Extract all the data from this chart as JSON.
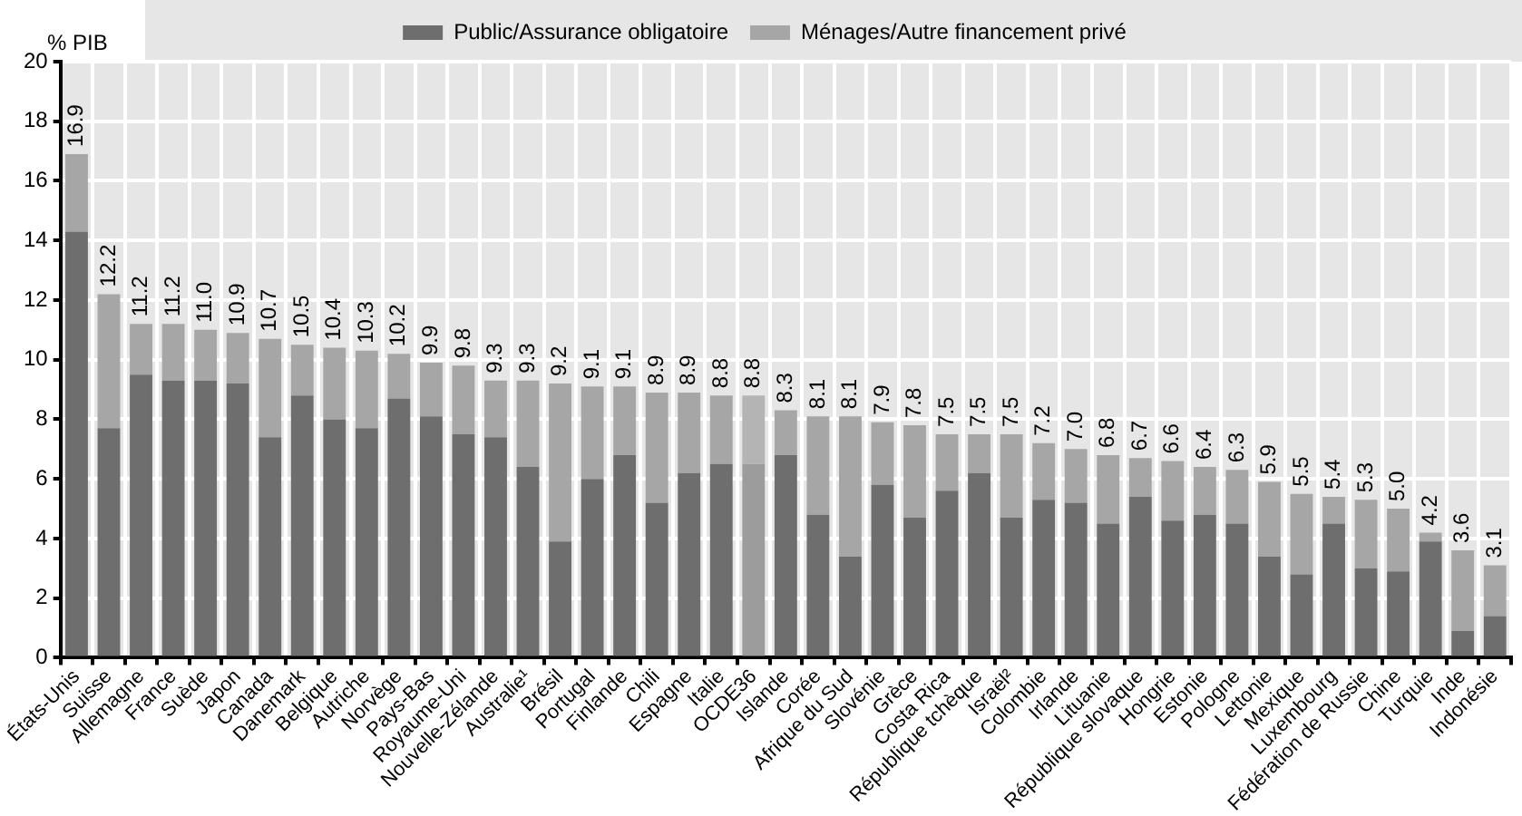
{
  "chart_data": {
    "type": "bar",
    "stacked": true,
    "ylabel": "% PIB",
    "legend": "top",
    "grid": true,
    "categories": [
      "États-Unis",
      "Suisse",
      "Allemagne",
      "France",
      "Suède",
      "Japon",
      "Canada",
      "Danemark",
      "Belgique",
      "Autriche",
      "Norvège",
      "Pays-Bas",
      "Royaume-Uni",
      "Nouvelle-Zélande",
      "Australie¹",
      "Brésil",
      "Portugal",
      "Finlande",
      "Chili",
      "Espagne",
      "Italie",
      "OCDE36",
      "Islande",
      "Corée",
      "Afrique du Sud",
      "Slovénie",
      "Grèce",
      "Costa Rica",
      "République tchèque",
      "Israël²",
      "Colombie",
      "Irlande",
      "Lituanie",
      "République slovaque",
      "Hongrie",
      "Estonie",
      "Pologne",
      "Lettonie",
      "Mexique",
      "Luxembourg",
      "Fédération de Russie",
      "Chine",
      "Turquie",
      "Inde",
      "Indonésie"
    ],
    "series": [
      {
        "name": "Public/Assurance obligatoire",
        "color": "#6e6e6e",
        "colors": [
          "#6e6e6e",
          "#6e6e6e",
          "#6e6e6e",
          "#6e6e6e",
          "#6e6e6e",
          "#6e6e6e",
          "#6e6e6e",
          "#6e6e6e",
          "#6e6e6e",
          "#6e6e6e",
          "#6e6e6e",
          "#6e6e6e",
          "#6e6e6e",
          "#6e6e6e",
          "#6e6e6e",
          "#6e6e6e",
          "#6e6e6e",
          "#6e6e6e",
          "#6e6e6e",
          "#6e6e6e",
          "#6e6e6e",
          "#9c9c9c",
          "#6e6e6e",
          "#6e6e6e",
          "#6e6e6e",
          "#6e6e6e",
          "#6e6e6e",
          "#6e6e6e",
          "#6e6e6e",
          "#6e6e6e",
          "#6e6e6e",
          "#6e6e6e",
          "#6e6e6e",
          "#6e6e6e",
          "#6e6e6e",
          "#6e6e6e",
          "#6e6e6e",
          "#6e6e6e",
          "#6e6e6e",
          "#6e6e6e",
          "#6e6e6e",
          "#6e6e6e",
          "#6e6e6e",
          "#6e6e6e",
          "#6e6e6e"
        ],
        "values": [
          14.3,
          7.7,
          9.5,
          9.3,
          9.3,
          9.2,
          7.4,
          8.8,
          8.0,
          7.7,
          8.7,
          8.1,
          7.5,
          7.4,
          6.4,
          3.9,
          6.0,
          6.8,
          5.2,
          6.2,
          6.5,
          6.5,
          6.8,
          4.8,
          3.4,
          5.8,
          4.7,
          5.6,
          6.2,
          4.7,
          5.3,
          5.2,
          4.5,
          5.4,
          4.6,
          4.8,
          4.5,
          3.4,
          2.8,
          4.5,
          3.0,
          2.9,
          3.9,
          0.9,
          1.4
        ]
      },
      {
        "name": "Ménages/Autre financement privé",
        "color": "#a6a6a6",
        "colors": [
          "#a6a6a6",
          "#a6a6a6",
          "#a6a6a6",
          "#a6a6a6",
          "#a6a6a6",
          "#a6a6a6",
          "#a6a6a6",
          "#a6a6a6",
          "#a6a6a6",
          "#a6a6a6",
          "#a6a6a6",
          "#a6a6a6",
          "#a6a6a6",
          "#a6a6a6",
          "#a6a6a6",
          "#a6a6a6",
          "#a6a6a6",
          "#a6a6a6",
          "#a6a6a6",
          "#a6a6a6",
          "#a6a6a6",
          "#b4b4b4",
          "#a6a6a6",
          "#a6a6a6",
          "#a6a6a6",
          "#a6a6a6",
          "#a6a6a6",
          "#a6a6a6",
          "#a6a6a6",
          "#a6a6a6",
          "#a6a6a6",
          "#a6a6a6",
          "#a6a6a6",
          "#a6a6a6",
          "#a6a6a6",
          "#a6a6a6",
          "#a6a6a6",
          "#a6a6a6",
          "#a6a6a6",
          "#a6a6a6",
          "#a6a6a6",
          "#a6a6a6",
          "#a6a6a6",
          "#a6a6a6",
          "#a6a6a6"
        ],
        "values": [
          2.6,
          4.5,
          1.7,
          1.9,
          1.7,
          1.7,
          3.3,
          1.7,
          2.4,
          2.6,
          1.5,
          1.8,
          2.3,
          1.9,
          2.9,
          5.3,
          3.1,
          2.3,
          3.7,
          2.7,
          2.3,
          2.3,
          1.5,
          3.3,
          4.7,
          2.1,
          3.1,
          1.9,
          1.3,
          2.8,
          1.9,
          1.8,
          2.3,
          1.3,
          2.0,
          1.6,
          1.8,
          2.5,
          2.7,
          0.9,
          2.3,
          2.1,
          0.3,
          2.7,
          1.7
        ]
      }
    ],
    "totals": [
      "16.9",
      "12.2",
      "11.2",
      "11.2",
      "11.0",
      "10.9",
      "10.7",
      "10.5",
      "10.4",
      "10.3",
      "10.2",
      "9.9",
      "9.8",
      "9.3",
      "9.3",
      "9.2",
      "9.1",
      "9.1",
      "8.9",
      "8.9",
      "8.8",
      "8.8",
      "8.3",
      "8.1",
      "8.1",
      "7.9",
      "7.8",
      "7.5",
      "7.5",
      "7.5",
      "7.2",
      "7.0",
      "6.8",
      "6.7",
      "6.6",
      "6.4",
      "6.3",
      "5.9",
      "5.5",
      "5.4",
      "5.3",
      "5.0",
      "4.2",
      "3.6",
      "3.1"
    ],
    "ylim": [
      0,
      20
    ],
    "yticks": [
      0,
      2,
      4,
      6,
      8,
      10,
      12,
      14,
      16,
      18,
      20
    ]
  }
}
